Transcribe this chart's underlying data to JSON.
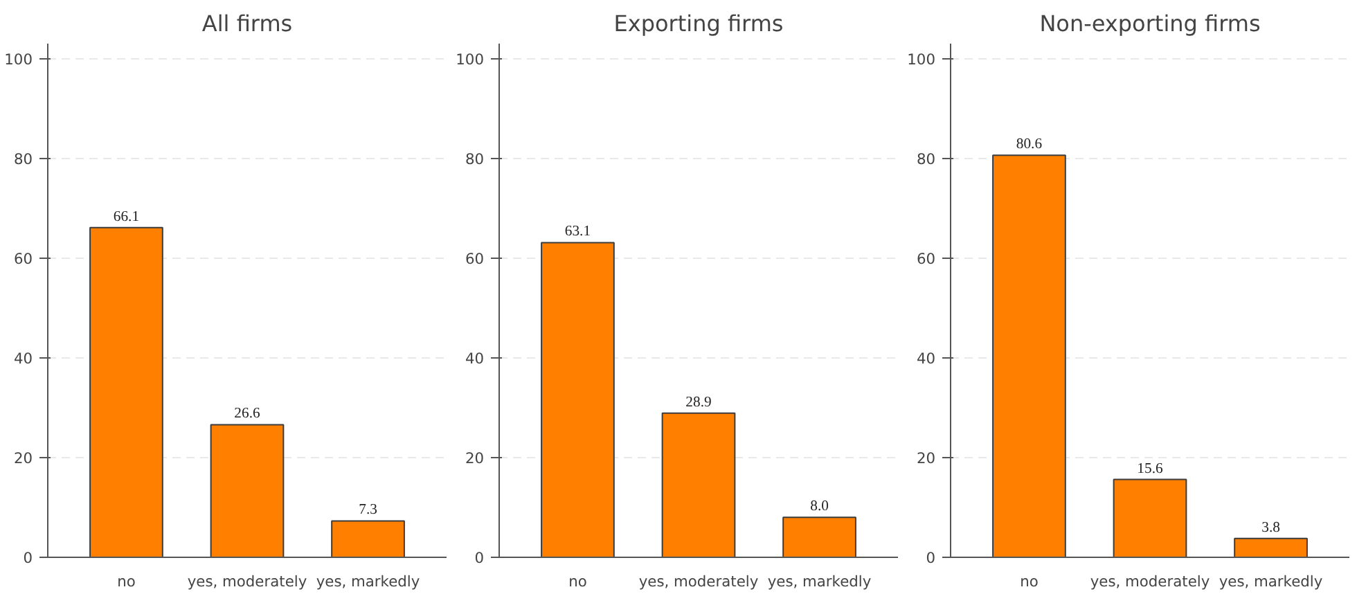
{
  "chart_data": [
    {
      "type": "bar",
      "title": "All firms",
      "categories": [
        "no",
        "yes, moderately",
        "yes, markedly"
      ],
      "values": [
        66.1,
        26.6,
        7.3
      ],
      "color": "#ff7f00",
      "ylim": [
        0,
        103
      ],
      "yticks": [
        0,
        20,
        40,
        60,
        80,
        100
      ],
      "grid": "y",
      "data_labels": true
    },
    {
      "type": "bar",
      "title": "Exporting firms",
      "categories": [
        "no",
        "yes, moderately",
        "yes, markedly"
      ],
      "values": [
        63.1,
        28.9,
        8.0
      ],
      "value_labels": [
        "63.1",
        "28.9",
        "8.0"
      ],
      "color": "#ff7f00",
      "ylim": [
        0,
        103
      ],
      "yticks": [
        0,
        20,
        40,
        60,
        80,
        100
      ],
      "grid": "y",
      "data_labels": true
    },
    {
      "type": "bar",
      "title": "Non-exporting firms",
      "categories": [
        "no",
        "yes, moderately",
        "yes, markedly"
      ],
      "values": [
        80.6,
        15.6,
        3.8
      ],
      "color": "#ff7f00",
      "ylim": [
        0,
        103
      ],
      "yticks": [
        0,
        20,
        40,
        60,
        80,
        100
      ],
      "grid": "y",
      "data_labels": true
    }
  ]
}
